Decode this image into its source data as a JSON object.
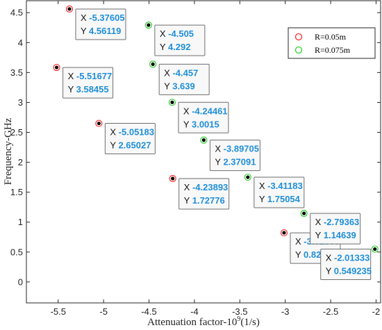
{
  "chart_data": {
    "type": "scatter",
    "xlabel": "Attenuation factor-10",
    "xlabel_sup": "9",
    "xlabel_unit": "(1/s)",
    "ylabel": "Frequency-GHz",
    "xlim": [
      -5.85,
      -1.95
    ],
    "ylim": [
      -0.35,
      4.7
    ],
    "xticks": [
      -5.5,
      -5,
      -4.5,
      -4,
      -3.5,
      -3,
      -2.5,
      -2
    ],
    "yticks": [
      0,
      0.5,
      1,
      1.5,
      2,
      2.5,
      3,
      3.5,
      4,
      4.5
    ],
    "xtick_labels": [
      "-5.5",
      "-5",
      "-4.5",
      "-4",
      "-3.5",
      "-3",
      "-2.5",
      "-2"
    ],
    "ytick_labels": [
      "0",
      "0.5",
      "1",
      "1.5",
      "2",
      "2.5",
      "3",
      "3.5",
      "4",
      "4.5"
    ],
    "grid": false,
    "legend_position": "top-right",
    "series": [
      {
        "name": "R=0.05m",
        "color": "#ff2a2a",
        "points": [
          {
            "x": -5.37605,
            "y": 4.56119,
            "xl": "-5.37605",
            "yl": "4.56119"
          },
          {
            "x": -5.51677,
            "y": 3.58455,
            "xl": "-5.51677",
            "yl": "3.58455"
          },
          {
            "x": -5.05183,
            "y": 2.65027,
            "xl": "-5.05183",
            "yl": "2.65027"
          },
          {
            "x": -4.23893,
            "y": 1.72776,
            "xl": "-4.23893",
            "yl": "1.72776"
          },
          {
            "x": -3.01308,
            "y": 0.821657,
            "xl": "-3.01308",
            "yl": "0.821657"
          }
        ]
      },
      {
        "name": "R=0.075m",
        "color": "#2fd12f",
        "points": [
          {
            "x": -4.505,
            "y": 4.292,
            "xl": "-4.505",
            "yl": "4.292"
          },
          {
            "x": -4.457,
            "y": 3.639,
            "xl": "-4.457",
            "yl": "3.639"
          },
          {
            "x": -4.24461,
            "y": 3.0015,
            "xl": "-4.24461",
            "yl": "3.0015"
          },
          {
            "x": -3.89705,
            "y": 2.37091,
            "xl": "-3.89705",
            "yl": "2.37091"
          },
          {
            "x": -3.41183,
            "y": 1.75054,
            "xl": "-3.41183",
            "yl": "1.75054"
          },
          {
            "x": -2.79363,
            "y": 1.14639,
            "xl": "-2.79363",
            "yl": "1.14639"
          },
          {
            "x": -2.01333,
            "y": 0.549235,
            "xl": "-2.01333",
            "yl": "0.549235"
          }
        ]
      }
    ],
    "datatip_prefix_x": "X",
    "datatip_prefix_y": "Y"
  }
}
